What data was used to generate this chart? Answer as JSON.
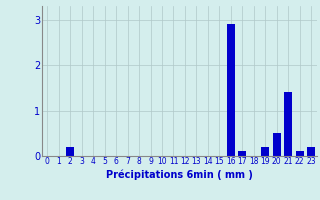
{
  "hours": [
    0,
    1,
    2,
    3,
    4,
    5,
    6,
    7,
    8,
    9,
    10,
    11,
    12,
    13,
    14,
    15,
    16,
    17,
    18,
    19,
    20,
    21,
    22,
    23
  ],
  "values": [
    0,
    0,
    0.2,
    0,
    0,
    0,
    0,
    0,
    0,
    0,
    0,
    0,
    0,
    0,
    0,
    0,
    2.9,
    0.1,
    0,
    0.2,
    0.5,
    1.4,
    0.1,
    0.2
  ],
  "bar_color": "#0000cc",
  "background_color": "#d4eeed",
  "grid_color": "#b0c8c8",
  "xlabel": "Précipitations 6min ( mm )",
  "ylim": [
    0,
    3.3
  ],
  "yticks": [
    0,
    1,
    2,
    3
  ],
  "xlabel_fontsize": 7,
  "tick_fontsize": 5.5,
  "bar_width": 0.7
}
